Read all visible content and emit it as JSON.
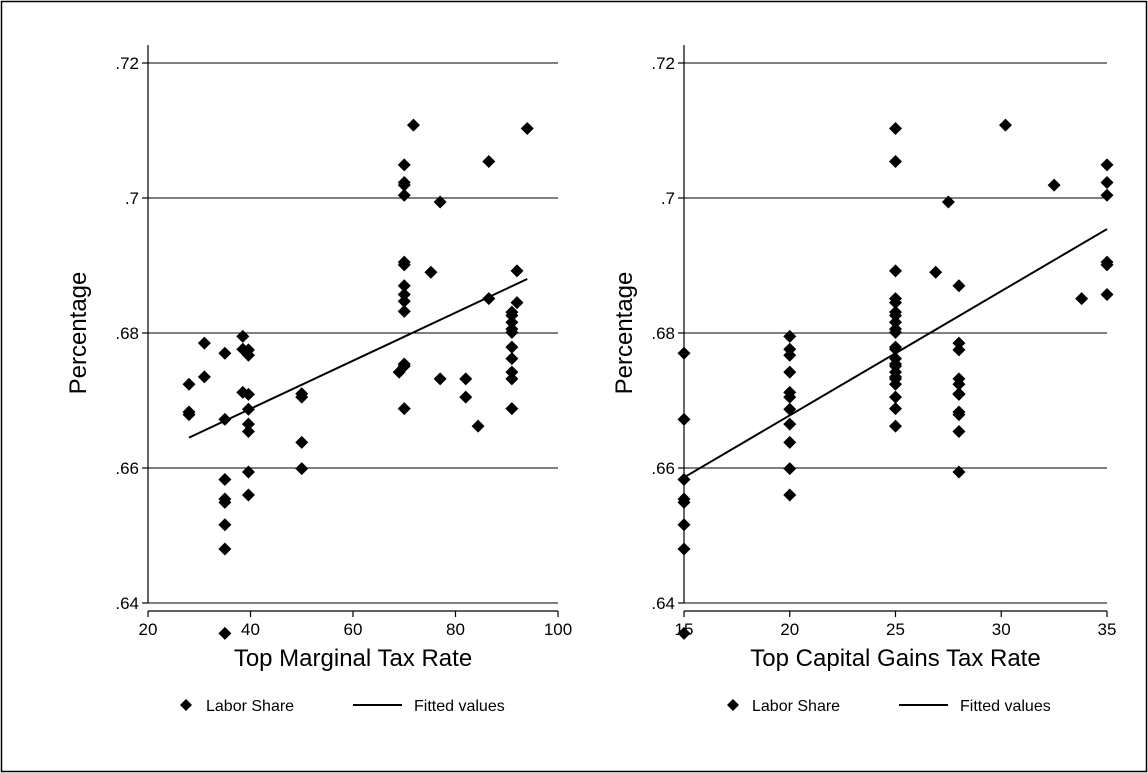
{
  "chart_data": [
    {
      "type": "scatter",
      "xlabel": "Top Marginal Tax Rate",
      "ylabel": "Percentage",
      "xlim": [
        20,
        100
      ],
      "ylim": [
        0.64,
        0.72
      ],
      "x_ticks": [
        20,
        40,
        60,
        80,
        100
      ],
      "x_tick_labels": [
        "20",
        "40",
        "60",
        "80",
        "100"
      ],
      "y_ticks": [
        0.64,
        0.66,
        0.68,
        0.7,
        0.72
      ],
      "y_tick_labels": [
        ".64",
        ".66",
        ".68",
        ".7",
        ".72"
      ],
      "grid": "horizontal",
      "legend_position": "bottom",
      "legend": [
        "Labor Share",
        "Fitted values"
      ],
      "series": [
        {
          "name": "Labor Share",
          "kind": "scatter",
          "points": [
            [
              28,
              0.6724
            ],
            [
              28,
              0.6683
            ],
            [
              28,
              0.6679
            ],
            [
              31,
              0.6735
            ],
            [
              31,
              0.6785
            ],
            [
              35,
              0.677
            ],
            [
              35,
              0.6672
            ],
            [
              35,
              0.6583
            ],
            [
              35,
              0.6554
            ],
            [
              35,
              0.6549
            ],
            [
              35,
              0.6516
            ],
            [
              35,
              0.648
            ],
            [
              35,
              0.6355
            ],
            [
              38.5,
              0.6795
            ],
            [
              38.5,
              0.6776
            ],
            [
              38.5,
              0.6712
            ],
            [
              39.6,
              0.6775
            ],
            [
              39.6,
              0.6767
            ],
            [
              39.6,
              0.6709
            ],
            [
              39.6,
              0.6687
            ],
            [
              39.6,
              0.6665
            ],
            [
              39.6,
              0.6654
            ],
            [
              39.6,
              0.6594
            ],
            [
              39.6,
              0.656
            ],
            [
              50,
              0.671
            ],
            [
              50,
              0.6705
            ],
            [
              50,
              0.6638
            ],
            [
              50,
              0.6599
            ],
            [
              69,
              0.6742
            ],
            [
              70,
              0.7049
            ],
            [
              70,
              0.7023
            ],
            [
              70,
              0.7019
            ],
            [
              70,
              0.7004
            ],
            [
              70,
              0.6905
            ],
            [
              70,
              0.6901
            ],
            [
              70,
              0.687
            ],
            [
              70,
              0.6857
            ],
            [
              70,
              0.6847
            ],
            [
              70,
              0.6832
            ],
            [
              70,
              0.6754
            ],
            [
              70,
              0.6751
            ],
            [
              70,
              0.6688
            ],
            [
              71.8,
              0.7108
            ],
            [
              75.2,
              0.689
            ],
            [
              77,
              0.6994
            ],
            [
              77,
              0.6732
            ],
            [
              82,
              0.6732
            ],
            [
              82,
              0.6705
            ],
            [
              84.4,
              0.6662
            ],
            [
              86.5,
              0.7054
            ],
            [
              86.5,
              0.6851
            ],
            [
              91,
              0.6831
            ],
            [
              91,
              0.6826
            ],
            [
              91,
              0.6816
            ],
            [
              91,
              0.6806
            ],
            [
              91,
              0.6801
            ],
            [
              91,
              0.6779
            ],
            [
              91,
              0.6762
            ],
            [
              91,
              0.6742
            ],
            [
              91,
              0.6732
            ],
            [
              91,
              0.6688
            ],
            [
              92,
              0.6892
            ],
            [
              92,
              0.6845
            ],
            [
              94,
              0.7103
            ]
          ]
        },
        {
          "name": "Fitted values",
          "kind": "line",
          "points": [
            [
              28,
              0.6645
            ],
            [
              94,
              0.688
            ]
          ]
        }
      ]
    },
    {
      "type": "scatter",
      "xlabel": "Top Capital Gains Tax Rate",
      "ylabel": "Percentage",
      "xlim": [
        15,
        35
      ],
      "ylim": [
        0.64,
        0.72
      ],
      "x_ticks": [
        15,
        20,
        25,
        30,
        35
      ],
      "x_tick_labels": [
        "15",
        "20",
        "25",
        "30",
        "35"
      ],
      "y_ticks": [
        0.64,
        0.66,
        0.68,
        0.7,
        0.72
      ],
      "y_tick_labels": [
        ".64",
        ".66",
        ".68",
        ".7",
        ".72"
      ],
      "grid": "horizontal",
      "legend_position": "bottom",
      "legend": [
        "Labor Share",
        "Fitted values"
      ],
      "series": [
        {
          "name": "Labor Share",
          "kind": "scatter",
          "points": [
            [
              15,
              0.677
            ],
            [
              15,
              0.6672
            ],
            [
              15,
              0.6583
            ],
            [
              15,
              0.6554
            ],
            [
              15,
              0.6549
            ],
            [
              15,
              0.6516
            ],
            [
              15,
              0.648
            ],
            [
              15,
              0.6355
            ],
            [
              20,
              0.6795
            ],
            [
              20,
              0.6776
            ],
            [
              20,
              0.6767
            ],
            [
              20,
              0.6742
            ],
            [
              20,
              0.6712
            ],
            [
              20,
              0.6705
            ],
            [
              20,
              0.6687
            ],
            [
              20,
              0.6665
            ],
            [
              20,
              0.6638
            ],
            [
              20,
              0.6599
            ],
            [
              20,
              0.656
            ],
            [
              25,
              0.7103
            ],
            [
              25,
              0.7054
            ],
            [
              25,
              0.6892
            ],
            [
              25,
              0.6851
            ],
            [
              25,
              0.6845
            ],
            [
              25,
              0.6831
            ],
            [
              25,
              0.6826
            ],
            [
              25,
              0.6816
            ],
            [
              25,
              0.6806
            ],
            [
              25,
              0.6801
            ],
            [
              25,
              0.6779
            ],
            [
              25,
              0.6776
            ],
            [
              25,
              0.6762
            ],
            [
              25,
              0.6754
            ],
            [
              25,
              0.6751
            ],
            [
              25,
              0.6742
            ],
            [
              25,
              0.6735
            ],
            [
              25,
              0.6732
            ],
            [
              25,
              0.6724
            ],
            [
              25,
              0.6705
            ],
            [
              25,
              0.6688
            ],
            [
              25,
              0.6662
            ],
            [
              26.9,
              0.689
            ],
            [
              27.5,
              0.6994
            ],
            [
              28,
              0.687
            ],
            [
              28,
              0.6785
            ],
            [
              28,
              0.6775
            ],
            [
              28,
              0.6732
            ],
            [
              28,
              0.6724
            ],
            [
              28,
              0.671
            ],
            [
              28,
              0.6709
            ],
            [
              28,
              0.6683
            ],
            [
              28,
              0.6679
            ],
            [
              28,
              0.6654
            ],
            [
              28,
              0.6594
            ],
            [
              30.2,
              0.7108
            ],
            [
              32.5,
              0.7019
            ],
            [
              33.8,
              0.6851
            ],
            [
              35,
              0.7049
            ],
            [
              35,
              0.7023
            ],
            [
              35,
              0.7004
            ],
            [
              35,
              0.6905
            ],
            [
              35,
              0.6901
            ],
            [
              35,
              0.6857
            ]
          ]
        },
        {
          "name": "Fitted values",
          "kind": "line",
          "points": [
            [
              15,
              0.6586
            ],
            [
              35,
              0.6954
            ]
          ]
        }
      ]
    }
  ]
}
